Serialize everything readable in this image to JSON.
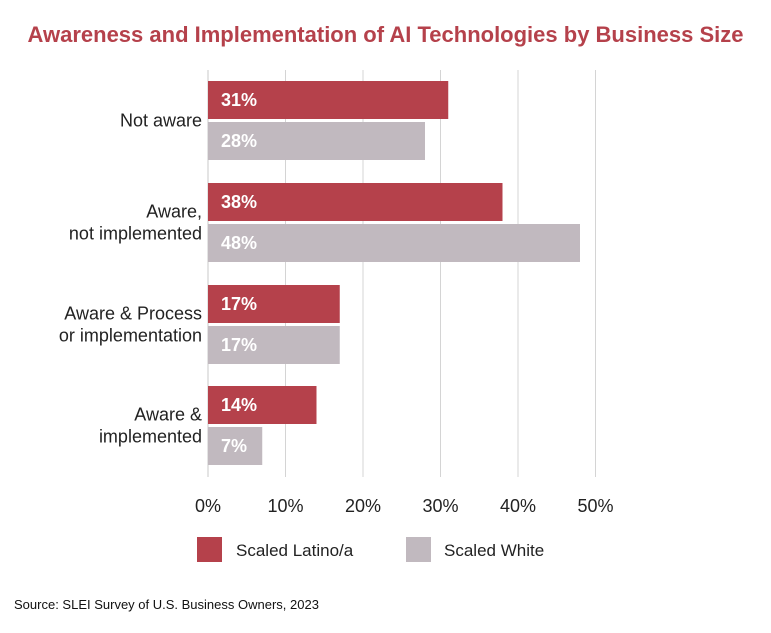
{
  "title": "Awareness and Implementation of AI Technologies by Business Size",
  "source": "Source: SLEI Survey of U.S. Business Owners, 2023",
  "chart_data": {
    "type": "bar",
    "orientation": "horizontal",
    "categories": [
      [
        "Not aware"
      ],
      [
        "Aware,",
        "not implemented"
      ],
      [
        "Aware & Process",
        "or implementation"
      ],
      [
        "Aware &",
        "implemented"
      ]
    ],
    "series": [
      {
        "name": "Scaled Latino/a",
        "values": [
          31,
          38,
          17,
          14
        ],
        "labels": [
          "31%",
          "38%",
          "17%",
          "14%"
        ],
        "color": "#b5414b"
      },
      {
        "name": "Scaled White",
        "values": [
          28,
          48,
          17,
          7
        ],
        "labels": [
          "28%",
          "48%",
          "17%",
          "7%"
        ],
        "color": "#c1b9bf"
      }
    ],
    "xlim": [
      0,
      50
    ],
    "xticks": [
      "0%",
      "10%",
      "20%",
      "30%",
      "40%",
      "50%"
    ],
    "grid": true,
    "legend": "bottom"
  }
}
